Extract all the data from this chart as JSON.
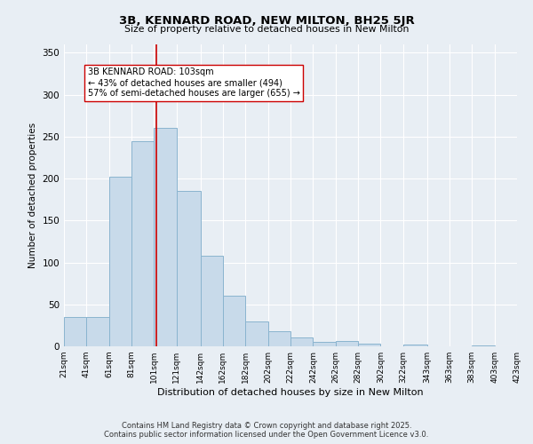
{
  "title": "3B, KENNARD ROAD, NEW MILTON, BH25 5JR",
  "subtitle": "Size of property relative to detached houses in New Milton",
  "xlabel": "Distribution of detached houses by size in New Milton",
  "ylabel": "Number of detached properties",
  "bar_color": "#c8daea",
  "bar_edge_color": "#8ab4cf",
  "bin_edges": [
    21,
    41,
    61,
    81,
    101,
    121,
    142,
    162,
    182,
    202,
    222,
    242,
    262,
    282,
    302,
    322,
    343,
    363,
    383,
    403,
    423
  ],
  "bar_heights": [
    35,
    35,
    202,
    245,
    260,
    185,
    108,
    60,
    30,
    18,
    11,
    5,
    6,
    3,
    0,
    2,
    0,
    0,
    1,
    0
  ],
  "property_size": 103,
  "property_line_color": "#cc0000",
  "ylim": [
    0,
    360
  ],
  "yticks": [
    0,
    50,
    100,
    150,
    200,
    250,
    300,
    350
  ],
  "annotation_text": "3B KENNARD ROAD: 103sqm\n← 43% of detached houses are smaller (494)\n57% of semi-detached houses are larger (655) →",
  "annotation_box_color": "#ffffff",
  "annotation_box_edge": "#cc0000",
  "footer_line1": "Contains HM Land Registry data © Crown copyright and database right 2025.",
  "footer_line2": "Contains public sector information licensed under the Open Government Licence v3.0.",
  "bg_color": "#e8eef4",
  "grid_color": "#ffffff",
  "font_family": "DejaVu Sans"
}
